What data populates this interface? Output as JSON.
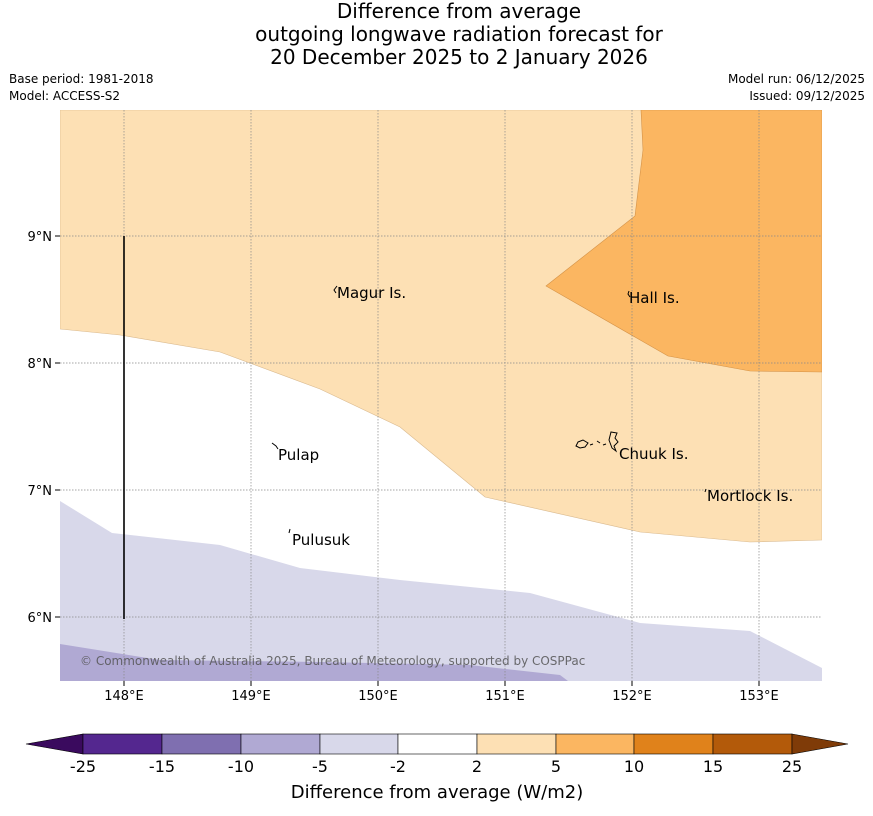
{
  "title": {
    "line1": "Difference from average",
    "line2": "outgoing longwave radiation forecast for",
    "line3": "20 December 2025 to 2 January 2026"
  },
  "meta": {
    "base_period": "Base period: 1981-2018",
    "model": "Model: ACCESS-S2",
    "model_run": "Model run: 06/12/2025",
    "issued": "Issued: 09/12/2025"
  },
  "map": {
    "lon_ticks": [
      "148°E",
      "149°E",
      "150°E",
      "151°E",
      "152°E",
      "153°E"
    ],
    "lat_ticks": [
      "9°N",
      "8°N",
      "7°N",
      "6°N"
    ],
    "places": {
      "magur": "Magur Is.",
      "hall": "Hall Is.",
      "pulap": "Pulap",
      "chuuk": "Chuuk Is.",
      "mortlock": "Mortlock Is.",
      "pulusuk": "Pulusuk"
    },
    "copyright": "© Commonwealth of Australia 2025, Bureau of Meteorology, supported by COSPPac"
  },
  "colorbar": {
    "title": "Difference from average (W/m2)",
    "labels": [
      "-25",
      "-15",
      "-10",
      "-5",
      "-2",
      "2",
      "5",
      "10",
      "15",
      "25"
    ],
    "colors": {
      "below_min": "#3a0a5e",
      "bins": [
        "#54278f",
        "#7f6fb0",
        "#b0a9d3",
        "#d8d8ea",
        "#ffffff",
        "#fde0b4",
        "#fbb661",
        "#e0821b",
        "#b35a0a"
      ],
      "above_max": "#7f3b08"
    }
  }
}
